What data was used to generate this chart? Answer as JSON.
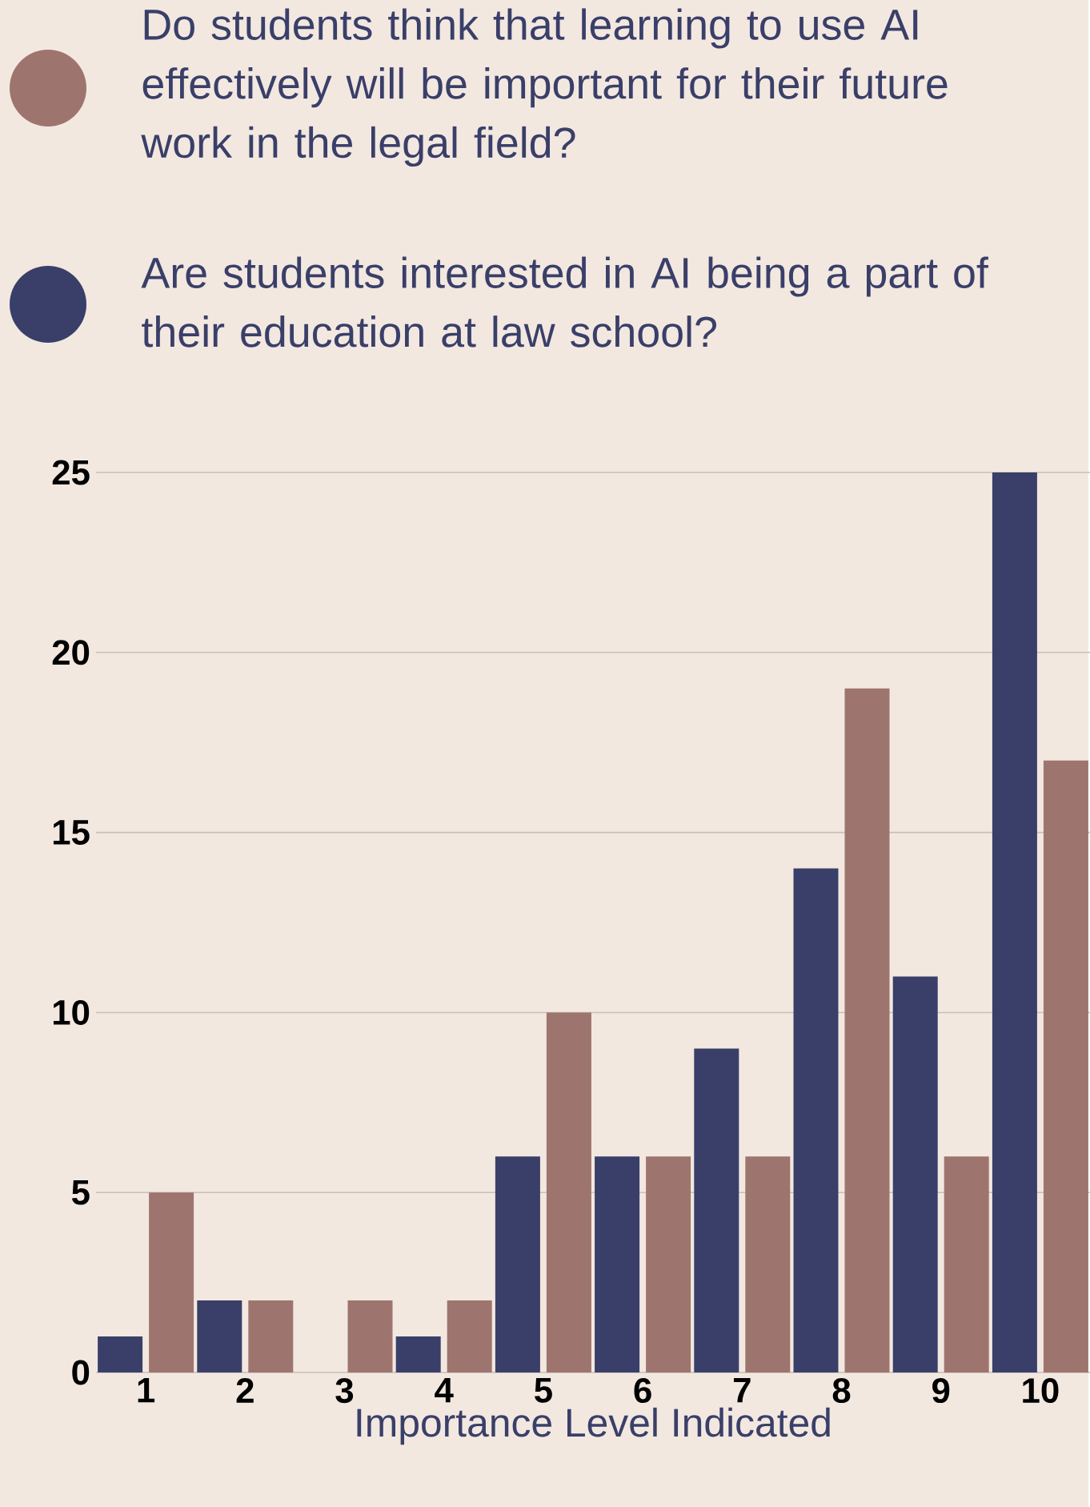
{
  "chart_data": {
    "type": "bar",
    "xlabel": "Importance Level Indicated",
    "categories": [
      "1",
      "2",
      "3",
      "4",
      "5",
      "6",
      "7",
      "8",
      "9",
      "10"
    ],
    "series": [
      {
        "name": "Do students think that learning to use AI effectively will be important for their future work in the legal field?",
        "color": "#9e756e",
        "values": [
          5,
          2,
          2,
          2,
          10,
          6,
          6,
          19,
          6,
          17
        ]
      },
      {
        "name": "Are students interested in AI being a part of their education at law school?",
        "color": "#3a3f69",
        "values": [
          1,
          2,
          0,
          1,
          6,
          6,
          9,
          14,
          11,
          25
        ]
      }
    ],
    "ylim": [
      0,
      25
    ],
    "yticks": [
      0,
      5,
      10,
      15,
      20,
      25
    ],
    "grid": "y",
    "legend": "top"
  }
}
